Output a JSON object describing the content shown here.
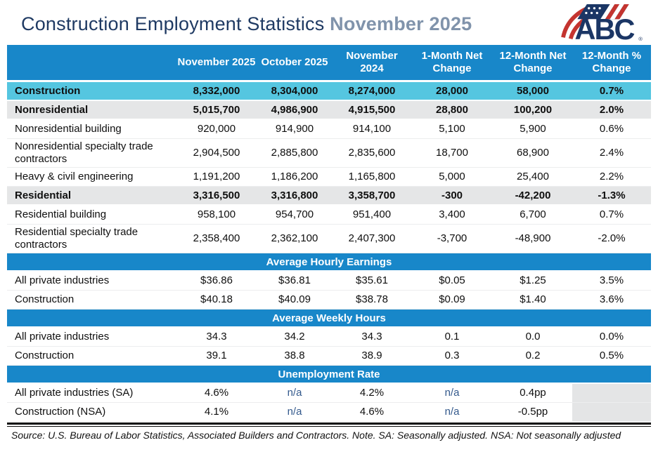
{
  "header": {
    "title_main": "Construction Employment Statistics",
    "title_date": "November 2025",
    "logo_name": "ABC",
    "logo_registered_mark": "®"
  },
  "colors": {
    "header_blue": "#1887C9",
    "highlight_cyan": "#55C6E0",
    "highlight_gray": "#E5E6E7",
    "na_text_blue": "#33598C",
    "title_navy": "#1F3A63",
    "title_gray_blue": "#8093AB",
    "logo_navy": "#1B3665",
    "logo_red": "#C4342F"
  },
  "chart_data": {
    "type": "table",
    "title": "Construction Employment Statistics",
    "subtitle": "November 2025",
    "columns": [
      "November 2025",
      "October 2025",
      "November 2024",
      "1-Month Net Change",
      "12-Month Net Change",
      "12-Month % Change"
    ],
    "employment_rows": [
      {
        "label": "Construction",
        "emphasis": "cyan",
        "values": [
          "8,332,000",
          "8,304,000",
          "8,274,000",
          "28,000",
          "58,000",
          "0.7%"
        ]
      },
      {
        "label": "Nonresidential",
        "emphasis": "gray",
        "values": [
          "5,015,700",
          "4,986,900",
          "4,915,500",
          "28,800",
          "100,200",
          "2.0%"
        ]
      },
      {
        "label": "Nonresidential building",
        "emphasis": null,
        "values": [
          "920,000",
          "914,900",
          "914,100",
          "5,100",
          "5,900",
          "0.6%"
        ]
      },
      {
        "label": "Nonresidential specialty trade contractors",
        "emphasis": null,
        "values": [
          "2,904,500",
          "2,885,800",
          "2,835,600",
          "18,700",
          "68,900",
          "2.4%"
        ]
      },
      {
        "label": "Heavy & civil engineering",
        "emphasis": null,
        "values": [
          "1,191,200",
          "1,186,200",
          "1,165,800",
          "5,000",
          "25,400",
          "2.2%"
        ]
      },
      {
        "label": "Residential",
        "emphasis": "gray",
        "values": [
          "3,316,500",
          "3,316,800",
          "3,358,700",
          "-300",
          "-42,200",
          "-1.3%"
        ]
      },
      {
        "label": "Residential building",
        "emphasis": null,
        "values": [
          "958,100",
          "954,700",
          "951,400",
          "3,400",
          "6,700",
          "0.7%"
        ]
      },
      {
        "label": "Residential specialty trade contractors",
        "emphasis": null,
        "values": [
          "2,358,400",
          "2,362,100",
          "2,407,300",
          "-3,700",
          "-48,900",
          "-2.0%"
        ]
      }
    ],
    "sections": [
      {
        "title": "Average Hourly Earnings",
        "rows": [
          {
            "label": "All private industries",
            "emphasis": null,
            "values": [
              "$36.86",
              "$36.81",
              "$35.61",
              "$0.05",
              "$1.25",
              "3.5%"
            ]
          },
          {
            "label": "Construction",
            "emphasis": null,
            "values": [
              "$40.18",
              "$40.09",
              "$38.78",
              "$0.09",
              "$1.40",
              "3.6%"
            ]
          }
        ]
      },
      {
        "title": "Average Weekly Hours",
        "rows": [
          {
            "label": "All private industries",
            "emphasis": null,
            "values": [
              "34.3",
              "34.2",
              "34.3",
              "0.1",
              "0.0",
              "0.0%"
            ]
          },
          {
            "label": "Construction",
            "emphasis": null,
            "values": [
              "39.1",
              "38.8",
              "38.9",
              "0.3",
              "0.2",
              "0.5%"
            ]
          }
        ]
      },
      {
        "title": "Unemployment Rate",
        "rows": [
          {
            "label": "All private industries (SA)",
            "emphasis": null,
            "values": [
              "4.6%",
              "n/a",
              "4.2%",
              "n/a",
              "0.4pp",
              null
            ]
          },
          {
            "label": "Construction (NSA)",
            "emphasis": null,
            "values": [
              "4.1%",
              "n/a",
              "4.6%",
              "n/a",
              "-0.5pp",
              null
            ]
          }
        ]
      }
    ],
    "source_note": "Source: U.S. Bureau of Labor Statistics, Associated Builders and Contractors.  Note. SA: Seasonally adjusted.  NSA: Not seasonally adjusted"
  }
}
